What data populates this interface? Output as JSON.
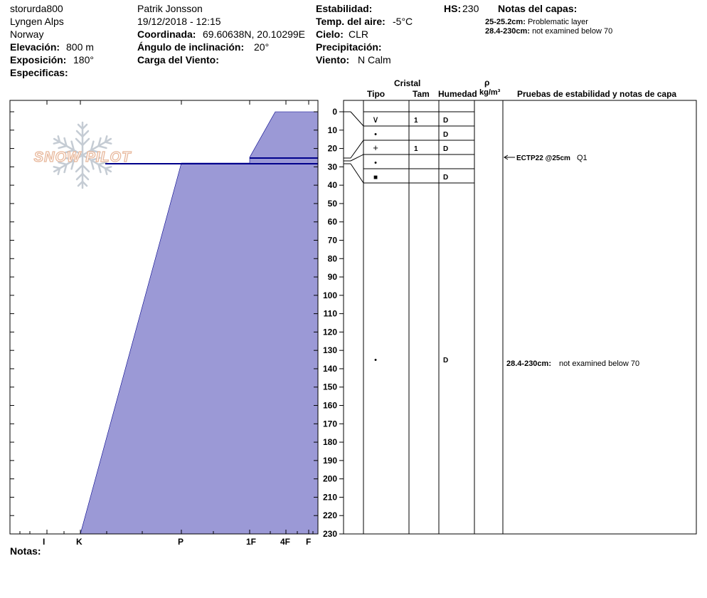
{
  "header": {
    "col1": {
      "site": "storurda800",
      "range": "Lyngen Alps",
      "country": "Norway",
      "elevation_label": "Elevación:",
      "elevation_value": "800 m",
      "aspect_label": "Exposición:",
      "aspect_value": "180°",
      "specifics_label": "Especificas:"
    },
    "col2": {
      "observer": "Patrik Jonsson",
      "datetime": "19/12/2018 - 12:15",
      "coord_label": "Coordinada:",
      "coord_value": "69.60638N, 20.10299E",
      "slope_label": "Ángulo de inclinación:",
      "slope_value": "20°",
      "wind_load_label": "Carga del Viento:"
    },
    "col3": {
      "stability_label": "Estabilidad:",
      "air_temp_label": "Temp. del aire:",
      "air_temp_value": "-5°C",
      "sky_label": "Cielo:",
      "sky_value": "CLR",
      "precip_label": "Precipitación:",
      "wind_label": "Viento:",
      "wind_value": "N Calm"
    },
    "hs_label": "HS:",
    "hs_value": "230",
    "layer_notes_title": "Notas del capas:",
    "layer_notes": [
      {
        "range": "25-25.2cm:",
        "text": "Problematic layer"
      },
      {
        "range": "28.4-230cm:",
        "text": "not examined below 70"
      }
    ]
  },
  "columns": {
    "crystal": "Cristal",
    "type": "Tipo",
    "size": "Tam",
    "moisture": "Humedad",
    "density_symbol": "ρ",
    "density_unit": "kg/m³",
    "tests": "Pruebas de estabilidad y notas de capa"
  },
  "logo_text": "SNOW PILOT",
  "depth_ticks": [
    "0",
    "10",
    "20",
    "30",
    "40",
    "50",
    "60",
    "70",
    "80",
    "90",
    "100",
    "110",
    "120",
    "130",
    "140",
    "150",
    "160",
    "170",
    "180",
    "190",
    "200",
    "210",
    "220",
    "230"
  ],
  "hardness_labels": [
    "I",
    "K",
    "P",
    "1F",
    "4F",
    "F"
  ],
  "layers": [
    {
      "type_symbol": "∨",
      "size": "1",
      "moisture": "D"
    },
    {
      "type_symbol": "•",
      "size": "",
      "moisture": "D"
    },
    {
      "type_symbol": "+",
      "size": "1",
      "moisture": "D"
    },
    {
      "type_symbol": "•",
      "size": "",
      "moisture": ""
    },
    {
      "type_symbol": "■",
      "size": "",
      "moisture": "D"
    },
    {
      "type_symbol": "•",
      "size": "",
      "moisture": "D"
    }
  ],
  "stability_tests": [
    {
      "result": "ECTP22 @25cm",
      "quality": "Q1"
    }
  ],
  "deep_layer_note": {
    "range": "28.4-230cm:",
    "text": "not examined below 70"
  },
  "notes_label": "Notas:",
  "colors": {
    "profile_fill": "#9b99d6",
    "layer_line": "#00008b",
    "logo": "#e8c4b0",
    "snowflake": "#c5ccd4"
  }
}
